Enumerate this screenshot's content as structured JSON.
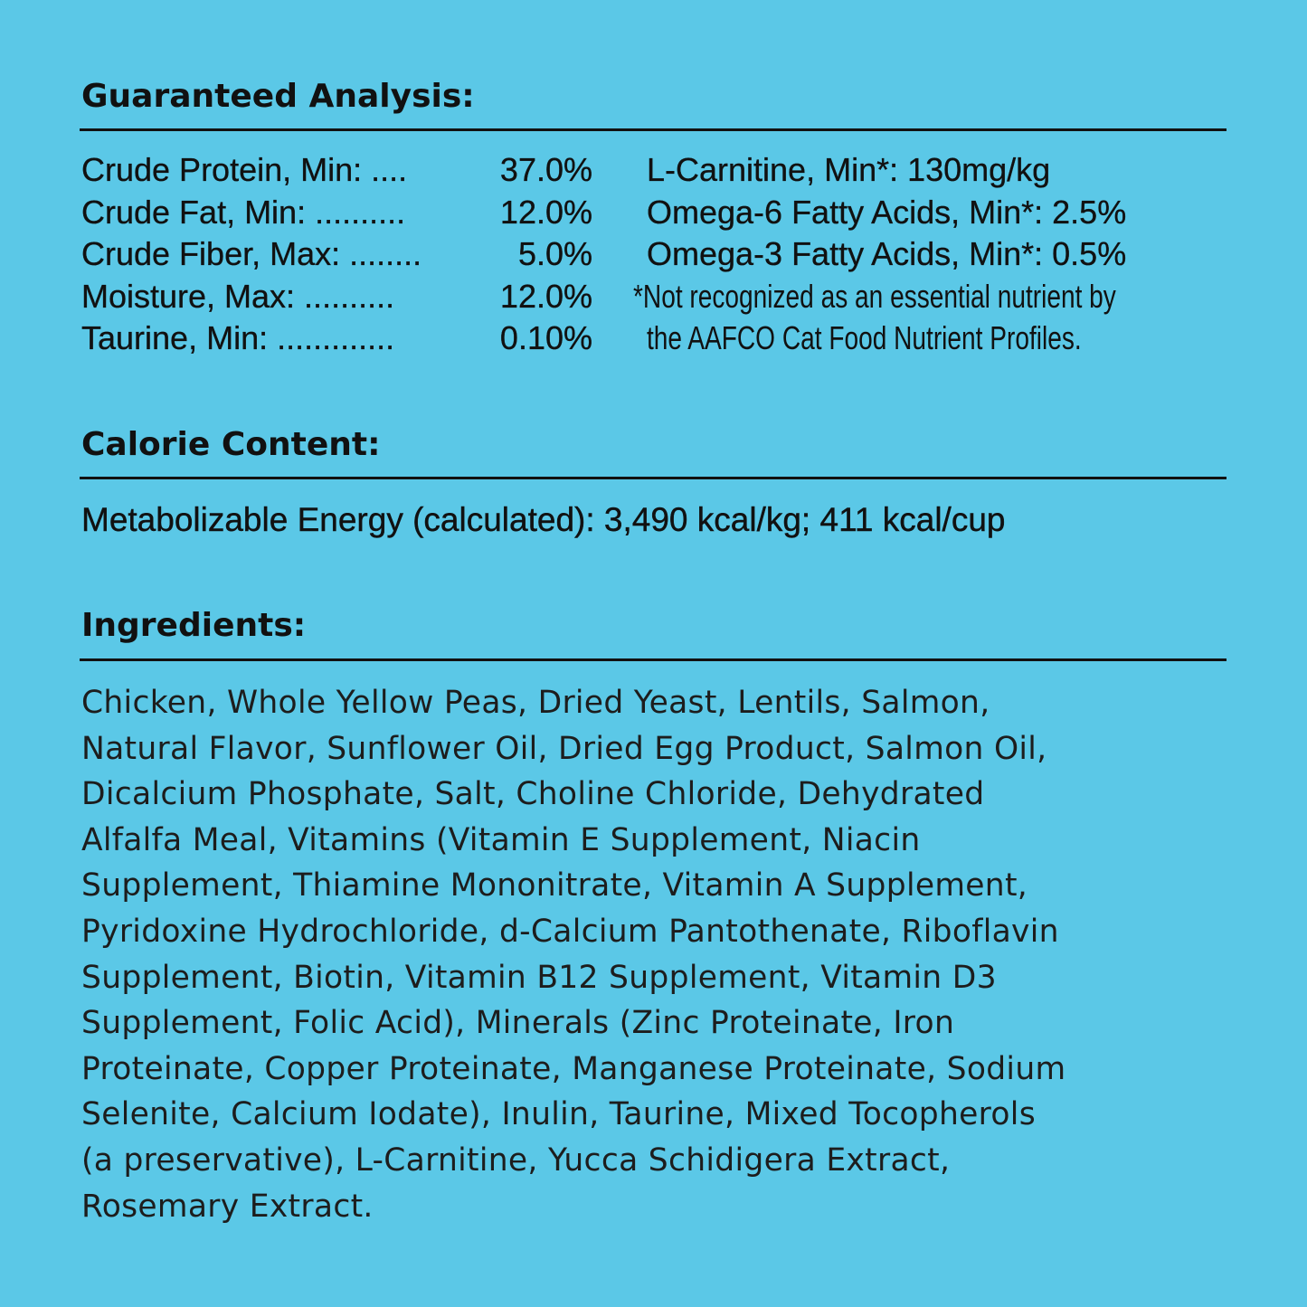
{
  "guaranteed_analysis": {
    "heading": "Guaranteed Analysis:",
    "rows": [
      {
        "label": "Crude Protein, Min: ....",
        "value": "37.0%"
      },
      {
        "label": "Crude Fat, Min: ..........",
        "value": "12.0%"
      },
      {
        "label": "Crude Fiber, Max: ........",
        "value": "5.0%"
      },
      {
        "label": "Moisture, Max: ..........",
        "value": "12.0%"
      },
      {
        "label": "Taurine, Min: .............",
        "value": "0.10%"
      }
    ],
    "extra": [
      "L-Carnitine, Min*: 130mg/kg",
      "Omega-6 Fatty Acids, Min*: 2.5%",
      "Omega-3 Fatty Acids, Min*: 0.5%"
    ],
    "footnote_lines": [
      "*Not recognized as an essential nutrient by",
      "the AAFCO Cat Food Nutrient Profiles."
    ]
  },
  "calorie_content": {
    "heading": "Calorie Content:",
    "text": "Metabolizable Energy (calculated): 3,490 kcal/kg; 411 kcal/cup"
  },
  "ingredients": {
    "heading": "Ingredients:",
    "lines": [
      "Chicken, Whole Yellow Peas, Dried Yeast, Lentils, Salmon,",
      "Natural Flavor, Sunflower Oil, Dried Egg Product, Salmon Oil,",
      "Dicalcium Phosphate, Salt, Choline Chloride, Dehydrated",
      "Alfalfa Meal, Vitamins (Vitamin E Supplement, Niacin",
      "Supplement, Thiamine Mononitrate, Vitamin A Supplement,",
      "Pyridoxine Hydrochloride, d-Calcium Pantothenate, Riboflavin",
      "Supplement, Biotin, Vitamin B12 Supplement, Vitamin D3",
      "Supplement, Folic Acid), Minerals (Zinc Proteinate, Iron",
      "Proteinate, Copper Proteinate, Manganese Proteinate, Sodium",
      "Selenite, Calcium Iodate), Inulin, Taurine, Mixed Tocopherols",
      "(a preservative), L-Carnitine, Yucca Schidigera Extract,",
      "Rosemary Extract."
    ]
  },
  "colors": {
    "background": "#5bc8e7",
    "text": "#111111"
  }
}
